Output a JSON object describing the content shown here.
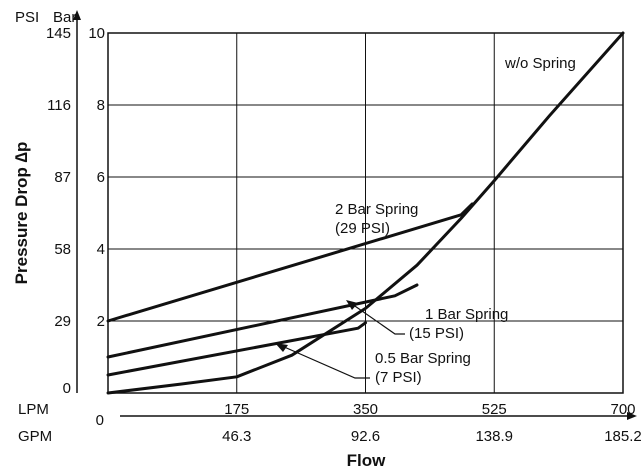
{
  "chart_data": {
    "type": "line",
    "xlabel": "Flow",
    "ylabel": "Pressure Drop ∆p",
    "x_units": [
      "LPM",
      "GPM"
    ],
    "y_units": [
      "PSI",
      "Bar"
    ],
    "xlim_lpm": [
      0,
      700
    ],
    "ylim_bar": [
      0,
      10
    ],
    "x_ticks_lpm": [
      "0",
      "175",
      "350",
      "525",
      "700"
    ],
    "x_ticks_gpm": [
      "46.3",
      "92.6",
      "138.9",
      "185.2"
    ],
    "y_ticks_bar": [
      "2",
      "4",
      "6",
      "8",
      "10"
    ],
    "y_ticks_psi": [
      "0",
      "29",
      "58",
      "87",
      "116",
      "145"
    ],
    "grid": true,
    "series": [
      {
        "name": "w/o Spring",
        "label_lines": [
          "w/o Spring"
        ],
        "x": [
          0,
          100,
          175,
          250,
          350,
          420,
          480,
          525,
          600,
          700
        ],
        "y": [
          0,
          0.25,
          0.45,
          1.05,
          2.35,
          3.55,
          4.85,
          5.9,
          7.7,
          10.0
        ]
      },
      {
        "name": "2 Bar Spring",
        "label_lines": [
          "2 Bar Spring",
          "(29 PSI)"
        ],
        "x": [
          0,
          480,
          495
        ],
        "y": [
          2.0,
          4.95,
          5.25
        ]
      },
      {
        "name": "1 Bar Spring",
        "label_lines": [
          "1 Bar Spring",
          "(15 PSI)"
        ],
        "x": [
          0,
          390,
          420
        ],
        "y": [
          1.0,
          2.7,
          3.0
        ]
      },
      {
        "name": "0.5 Bar Spring",
        "label_lines": [
          "0.5 Bar Spring",
          "(7 PSI)"
        ],
        "x": [
          0,
          340,
          350
        ],
        "y": [
          0.5,
          1.8,
          1.95
        ]
      }
    ]
  }
}
